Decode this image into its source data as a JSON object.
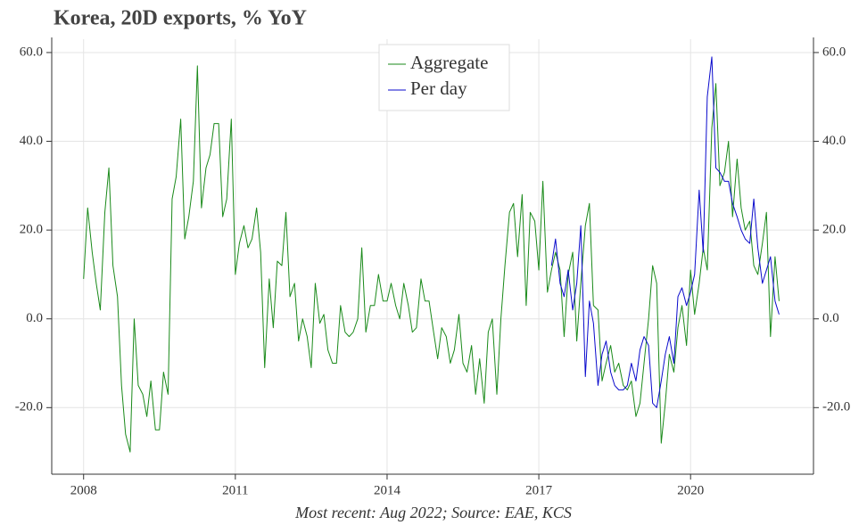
{
  "chart_data": {
    "type": "line",
    "title": "Korea, 20D exports, % YoY",
    "caption": "Most recent: Aug 2022; Source: EAE, KCS",
    "x": [
      2008,
      2008.08,
      2008.17,
      2008.25,
      2008.33,
      2008.42,
      2008.5,
      2008.58,
      2008.67,
      2008.75,
      2008.83,
      2008.92,
      2009,
      2009.08,
      2009.17,
      2009.25,
      2009.33,
      2009.42,
      2009.5,
      2009.58,
      2009.67,
      2009.75,
      2009.83,
      2009.92,
      2010,
      2010.08,
      2010.17,
      2010.25,
      2010.33,
      2010.42,
      2010.5,
      2010.58,
      2010.67,
      2010.75,
      2010.83,
      2010.92,
      2011,
      2011.08,
      2011.17,
      2011.25,
      2011.33,
      2011.42,
      2011.5,
      2011.58,
      2011.67,
      2011.75,
      2011.83,
      2011.92,
      2012,
      2012.08,
      2012.17,
      2012.25,
      2012.33,
      2012.42,
      2012.5,
      2012.58,
      2012.67,
      2012.75,
      2012.83,
      2012.92,
      2013,
      2013.08,
      2013.17,
      2013.25,
      2013.33,
      2013.42,
      2013.5,
      2013.58,
      2013.67,
      2013.75,
      2013.83,
      2013.92,
      2014,
      2014.08,
      2014.17,
      2014.25,
      2014.33,
      2014.42,
      2014.5,
      2014.58,
      2014.67,
      2014.75,
      2014.83,
      2014.92,
      2015,
      2015.08,
      2015.17,
      2015.25,
      2015.33,
      2015.42,
      2015.5,
      2015.58,
      2015.67,
      2015.75,
      2015.83,
      2015.92,
      2016,
      2016.08,
      2016.17,
      2016.25,
      2016.33,
      2016.42,
      2016.5,
      2016.58,
      2016.67,
      2016.75,
      2016.83,
      2016.92,
      2017,
      2017.08,
      2017.17,
      2017.25,
      2017.33,
      2017.42,
      2017.5,
      2017.58,
      2017.67,
      2017.75,
      2017.83,
      2017.92,
      2018,
      2018.08,
      2018.17,
      2018.25,
      2018.33,
      2018.42,
      2018.5,
      2018.58,
      2018.67,
      2018.75,
      2018.83,
      2018.92,
      2019,
      2019.08,
      2019.17,
      2019.25,
      2019.33,
      2019.42,
      2019.5,
      2019.58,
      2019.67,
      2019.75,
      2019.83,
      2019.92,
      2020,
      2020.08,
      2020.17,
      2020.25,
      2020.33,
      2020.42,
      2020.5,
      2020.58,
      2020.67,
      2020.75,
      2020.83,
      2020.92,
      2021,
      2021.08,
      2021.17,
      2021.25,
      2021.33,
      2021.42,
      2021.5,
      2021.58,
      2021.67,
      2021.75
    ],
    "series": [
      {
        "name": "Aggregate",
        "color": "#1a8a1a",
        "values": [
          9,
          25,
          15,
          8,
          2,
          24,
          34,
          12,
          5,
          -15,
          -26,
          -30,
          0,
          -15,
          -17,
          -22,
          -14,
          -25,
          -25,
          -12,
          -17,
          27,
          32,
          45,
          18,
          23,
          31,
          57,
          25,
          34,
          37,
          44,
          44,
          23,
          27,
          45,
          10,
          17,
          21,
          16,
          18,
          25,
          15,
          -11,
          9,
          -2,
          13,
          12,
          24,
          5,
          8,
          -5,
          0,
          -4,
          -11,
          8,
          -1,
          1,
          -7,
          -10,
          -10,
          3,
          -3,
          -4,
          -3,
          0,
          16,
          -3,
          3,
          3,
          10,
          4,
          4,
          8,
          3,
          0,
          8,
          3,
          -3,
          -2,
          9,
          4,
          4,
          -3,
          -9,
          -2,
          -4,
          -10,
          -7,
          1,
          -10,
          -12,
          -6,
          -17,
          -9,
          -19,
          -3,
          0,
          -17,
          0,
          12,
          24,
          26,
          14,
          28,
          3,
          24,
          22,
          11,
          31,
          6,
          11,
          15,
          11,
          -4,
          10,
          15,
          -5,
          8,
          21,
          26,
          3,
          2,
          -14,
          -10,
          -6,
          -12,
          -10,
          -15,
          -16,
          -14,
          -22,
          -19,
          -10,
          0,
          12,
          8,
          -28,
          -19,
          -8,
          -12,
          -2,
          3,
          -6,
          11,
          1,
          8,
          16,
          11,
          43,
          53,
          30,
          33,
          40,
          23,
          36,
          25,
          20,
          22,
          12,
          10,
          17,
          24,
          -4,
          14,
          4
        ]
      },
      {
        "name": "Per day",
        "color": "#0a0acc",
        "values": [
          null,
          null,
          null,
          null,
          null,
          null,
          null,
          null,
          null,
          null,
          null,
          null,
          null,
          null,
          null,
          null,
          null,
          null,
          null,
          null,
          null,
          null,
          null,
          null,
          null,
          null,
          null,
          null,
          null,
          null,
          null,
          null,
          null,
          null,
          null,
          null,
          null,
          null,
          null,
          null,
          null,
          null,
          null,
          null,
          null,
          null,
          null,
          null,
          null,
          null,
          null,
          null,
          null,
          null,
          null,
          null,
          null,
          null,
          null,
          null,
          null,
          null,
          null,
          null,
          null,
          null,
          null,
          null,
          null,
          null,
          null,
          null,
          null,
          null,
          null,
          null,
          null,
          null,
          null,
          null,
          null,
          null,
          null,
          null,
          null,
          null,
          null,
          null,
          null,
          null,
          null,
          null,
          null,
          null,
          null,
          null,
          null,
          null,
          null,
          null,
          null,
          null,
          null,
          null,
          null,
          null,
          null,
          null,
          null,
          null,
          null,
          12,
          18,
          8,
          5,
          11,
          2,
          8,
          21,
          -13,
          4,
          -1,
          -15,
          -8,
          -5,
          -12,
          -15,
          -16,
          -16,
          -15,
          -10,
          -14,
          -7,
          -4,
          -6,
          -19,
          -20,
          -14,
          -8,
          -4,
          -10,
          5,
          7,
          3,
          6,
          10,
          29,
          15,
          50,
          59,
          34,
          33,
          31,
          31,
          26,
          23,
          20,
          18,
          17,
          27,
          16,
          8,
          11,
          14,
          4,
          1
        ]
      }
    ],
    "xlim": [
      2007.37,
      2022.43
    ],
    "xticks": [
      2008,
      2011,
      2014,
      2017,
      2020
    ],
    "ylim": [
      -35,
      63
    ],
    "yticks": [
      {
        "value": -20,
        "label": "-20.0"
      },
      {
        "value": 0,
        "label": "0.0"
      },
      {
        "value": 20,
        "label": "20.0"
      },
      {
        "value": 40,
        "label": "40.0"
      },
      {
        "value": 60,
        "label": "60.0"
      }
    ],
    "y2lim": [
      -35,
      63
    ],
    "y2ticks": [
      {
        "value": -20,
        "label": "-20.0"
      },
      {
        "value": 0,
        "label": "0.0"
      },
      {
        "value": 20,
        "label": "20.0"
      },
      {
        "value": 40,
        "label": "40.0"
      },
      {
        "value": 60,
        "label": "60.0"
      }
    ],
    "grid": true,
    "legend": "upper center"
  }
}
